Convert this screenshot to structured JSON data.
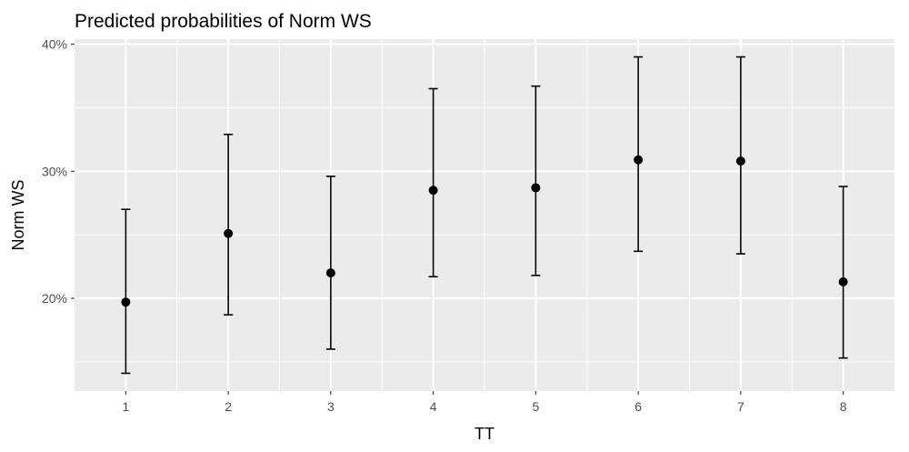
{
  "chart_data": {
    "type": "scatter",
    "title": "Predicted probabilities of Norm WS",
    "xlabel": "TT",
    "ylabel": "Norm WS",
    "categories": [
      "1",
      "2",
      "3",
      "4",
      "5",
      "6",
      "7",
      "8"
    ],
    "values": [
      19.7,
      25.1,
      22.0,
      28.5,
      28.7,
      30.9,
      30.8,
      21.3
    ],
    "ci_lower": [
      14.1,
      18.7,
      16.0,
      21.7,
      21.8,
      23.7,
      23.5,
      15.3
    ],
    "ci_upper": [
      27.0,
      32.9,
      29.6,
      36.5,
      36.7,
      39.0,
      39.0,
      28.8
    ],
    "y_ticks": [
      {
        "value": 20,
        "label": "20%"
      },
      {
        "value": 30,
        "label": "30%"
      },
      {
        "value": 40,
        "label": "40%"
      }
    ],
    "ylim": [
      12.7,
      40.4
    ],
    "grid": true,
    "colors": {
      "panel": "#ebebeb",
      "grid": "#ffffff",
      "marker": "#000000",
      "tick_text": "#4d4d4d"
    }
  }
}
